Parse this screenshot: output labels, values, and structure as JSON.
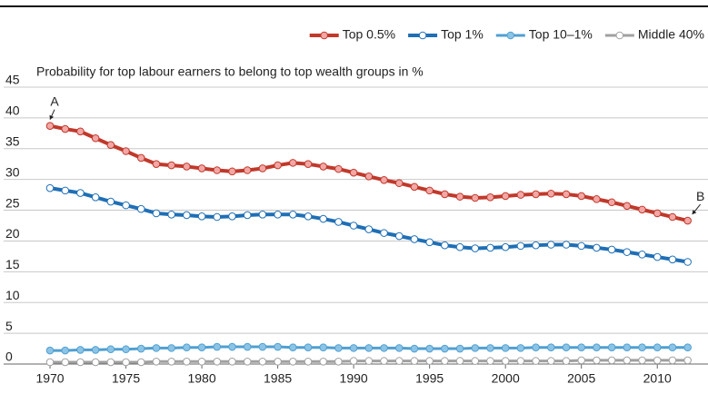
{
  "chart_data": {
    "type": "line",
    "title": "Probability for top labour earners to belong to top wealth groups in %",
    "x": [
      1970,
      1971,
      1972,
      1973,
      1974,
      1975,
      1976,
      1977,
      1978,
      1979,
      1980,
      1981,
      1982,
      1983,
      1984,
      1985,
      1986,
      1987,
      1988,
      1989,
      1990,
      1991,
      1992,
      1993,
      1994,
      1995,
      1996,
      1997,
      1998,
      1999,
      2000,
      2001,
      2002,
      2003,
      2004,
      2005,
      2006,
      2007,
      2008,
      2009,
      2010,
      2011,
      2012
    ],
    "series": [
      {
        "name": "Top 0.5%",
        "color": "#c0392b",
        "marker_fill": "#f2a7a5",
        "values": [
          38.7,
          38.2,
          37.8,
          36.7,
          35.6,
          34.6,
          33.5,
          32.5,
          32.3,
          32.1,
          31.8,
          31.5,
          31.3,
          31.5,
          31.8,
          32.3,
          32.7,
          32.5,
          32.1,
          31.7,
          31.1,
          30.5,
          29.9,
          29.4,
          28.8,
          28.2,
          27.6,
          27.2,
          27.0,
          27.1,
          27.3,
          27.5,
          27.6,
          27.7,
          27.6,
          27.3,
          26.8,
          26.3,
          25.7,
          25.1,
          24.5,
          23.9,
          23.3
        ]
      },
      {
        "name": "Top 1%",
        "color": "#1f6fb5",
        "marker_fill": "#ffffff",
        "values": [
          28.6,
          28.2,
          27.8,
          27.1,
          26.4,
          25.8,
          25.2,
          24.5,
          24.3,
          24.2,
          24.0,
          23.9,
          24.0,
          24.2,
          24.3,
          24.3,
          24.3,
          24.0,
          23.6,
          23.1,
          22.5,
          21.9,
          21.3,
          20.8,
          20.3,
          19.8,
          19.3,
          19.0,
          18.8,
          18.9,
          19.0,
          19.2,
          19.3,
          19.4,
          19.4,
          19.2,
          18.9,
          18.6,
          18.2,
          17.8,
          17.4,
          17.0,
          16.6
        ]
      },
      {
        "name": "Top 10–1%",
        "color": "#4f9fd1",
        "marker_fill": "#8cc4e6",
        "values": [
          2.2,
          2.2,
          2.3,
          2.3,
          2.4,
          2.4,
          2.5,
          2.6,
          2.6,
          2.7,
          2.7,
          2.8,
          2.8,
          2.8,
          2.8,
          2.8,
          2.7,
          2.7,
          2.7,
          2.6,
          2.6,
          2.6,
          2.6,
          2.6,
          2.5,
          2.5,
          2.5,
          2.5,
          2.6,
          2.6,
          2.6,
          2.6,
          2.7,
          2.7,
          2.7,
          2.7,
          2.7,
          2.7,
          2.7,
          2.7,
          2.7,
          2.7,
          2.7
        ]
      },
      {
        "name": "Middle 40%",
        "color": "#a0a0a0",
        "marker_fill": "#ffffff",
        "values": [
          0.3,
          0.3,
          0.3,
          0.3,
          0.3,
          0.3,
          0.3,
          0.4,
          0.4,
          0.4,
          0.4,
          0.4,
          0.4,
          0.4,
          0.4,
          0.4,
          0.4,
          0.4,
          0.4,
          0.4,
          0.5,
          0.5,
          0.5,
          0.5,
          0.5,
          0.5,
          0.5,
          0.5,
          0.5,
          0.5,
          0.5,
          0.5,
          0.5,
          0.5,
          0.5,
          0.6,
          0.6,
          0.6,
          0.6,
          0.6,
          0.6,
          0.6,
          0.6
        ]
      }
    ],
    "annotations": [
      {
        "text": "A",
        "x": 1970,
        "y": 38.7
      },
      {
        "text": "B",
        "x": 2012,
        "y": 23.3
      }
    ],
    "xlim": [
      1969.34,
      2012.8
    ],
    "xticks": [
      1970,
      1975,
      1980,
      1985,
      1990,
      1995,
      2000,
      2005,
      2010
    ],
    "ylim": [
      0,
      45
    ],
    "yticks": [
      0,
      5,
      10,
      15,
      20,
      25,
      30,
      35,
      40,
      45
    ],
    "grid": true,
    "legend": "top-right"
  }
}
